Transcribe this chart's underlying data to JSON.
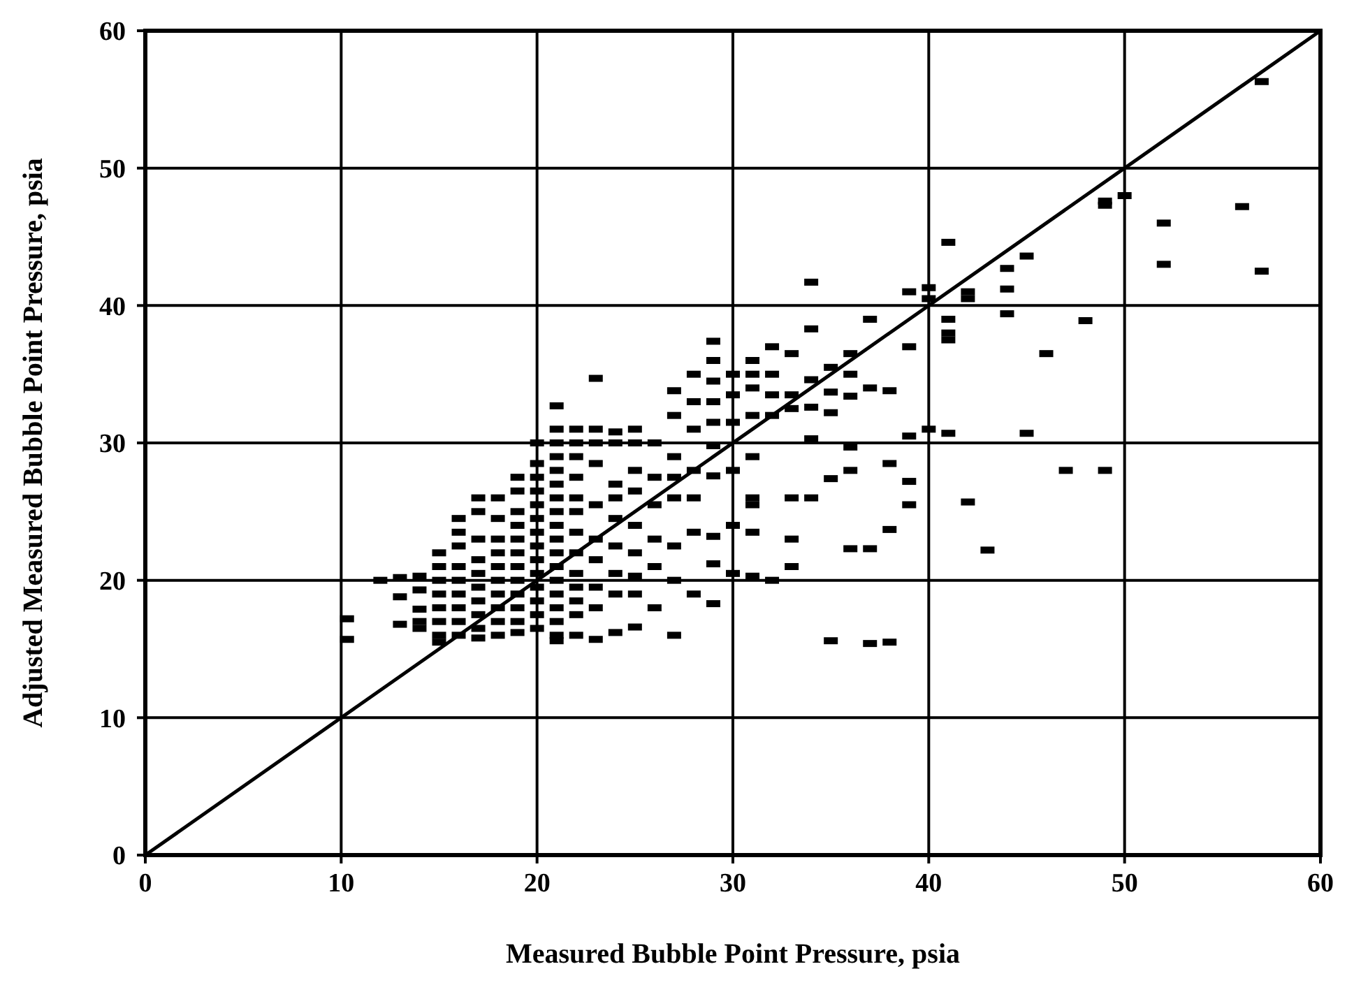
{
  "chart_data": {
    "type": "scatter",
    "xlabel": "Measured Bubble Point Pressure, psia",
    "ylabel": "Adjusted Measured Bubble Point Pressure, psia",
    "xlim": [
      0,
      60
    ],
    "ylim": [
      0,
      60
    ],
    "xticks": [
      0,
      10,
      20,
      30,
      40,
      50,
      60
    ],
    "yticks": [
      0,
      10,
      20,
      30,
      40,
      50,
      60
    ],
    "grid": true,
    "marker": "square",
    "series": [
      {
        "type": "line",
        "marker": "none",
        "color": "#000000",
        "x": [
          0,
          60
        ],
        "values": [
          0,
          60
        ]
      },
      {
        "color": "#000000",
        "x": [
          10.3,
          10.3,
          12,
          13,
          13,
          13,
          14,
          14,
          14,
          14,
          14,
          15,
          15,
          15,
          15,
          15,
          15,
          15,
          15,
          16,
          16,
          16,
          16,
          16,
          16,
          16,
          16,
          16,
          17,
          17,
          17,
          17,
          17,
          17,
          17,
          17,
          17,
          17,
          18,
          18,
          18,
          18,
          18,
          18,
          18,
          18,
          18,
          18,
          19,
          19,
          19,
          19,
          19,
          19,
          19,
          19,
          19,
          19,
          19,
          19,
          20,
          20,
          20,
          20,
          20,
          20,
          20,
          20,
          20,
          20,
          20,
          20,
          20,
          20,
          21,
          21,
          21,
          21,
          21,
          21,
          21,
          21,
          21,
          21,
          21,
          21,
          21,
          21,
          21,
          21,
          21,
          21,
          22,
          22,
          22,
          22,
          22,
          22,
          22,
          22,
          22,
          22,
          22,
          22,
          22,
          23,
          23,
          23,
          23,
          23,
          23,
          23,
          23,
          23,
          23,
          24,
          24,
          24,
          24,
          24,
          24,
          24,
          24,
          24,
          25,
          25,
          25,
          25,
          25,
          25,
          25,
          25,
          25,
          26,
          26,
          26,
          26,
          26,
          26,
          27,
          27,
          27,
          27,
          27,
          27,
          27,
          27,
          28,
          28,
          28,
          28,
          28,
          28,
          28,
          29,
          29,
          29,
          29,
          29,
          29,
          29,
          29,
          29,
          29,
          30,
          30,
          30,
          30,
          30,
          30,
          31,
          31,
          31,
          31,
          31,
          31,
          31,
          31,
          31,
          32,
          32,
          32,
          32,
          32,
          33,
          33,
          33,
          33,
          33,
          33,
          34,
          34,
          34,
          34,
          34,
          34,
          35,
          35,
          35,
          35,
          35,
          36,
          36,
          36,
          36,
          36,
          36,
          37,
          37,
          37,
          37,
          38,
          38,
          38,
          38,
          39,
          39,
          39,
          39,
          39,
          40,
          40,
          40,
          41,
          41,
          41,
          41,
          41,
          42,
          42,
          42,
          43,
          44,
          44,
          44,
          45,
          45,
          46,
          47,
          48,
          49,
          49,
          49,
          50,
          52,
          52,
          56,
          57,
          57
        ],
        "values": [
          17.2,
          15.7,
          20,
          20.2,
          18.8,
          16.8,
          20.3,
          19.3,
          17.9,
          17,
          16.5,
          22,
          21,
          20,
          19,
          18,
          17,
          16,
          15.5,
          24.5,
          23.5,
          22.5,
          21,
          20,
          19,
          18,
          17,
          16,
          26,
          25,
          23,
          21.5,
          20.5,
          19.5,
          18.5,
          17.5,
          16.5,
          15.8,
          26,
          24.5,
          23,
          22,
          21,
          20,
          19,
          18,
          17,
          16,
          27.5,
          26.5,
          25,
          24,
          23,
          22,
          21,
          20,
          19,
          18,
          17,
          16.2,
          30,
          28.5,
          27.5,
          26.5,
          25.5,
          24.5,
          23.5,
          22.5,
          21.5,
          20.5,
          19.5,
          18.5,
          17.5,
          16.5,
          32.7,
          31,
          30,
          29,
          28,
          27,
          26,
          25,
          24,
          23,
          22,
          21,
          20,
          19,
          18,
          17,
          16,
          15.6,
          31,
          30,
          29,
          27.5,
          26,
          25,
          23.5,
          22,
          20.5,
          19.5,
          18.5,
          17.5,
          16,
          34.7,
          31,
          30,
          28.5,
          25.5,
          23,
          21.5,
          19.5,
          18,
          15.7,
          30.8,
          30,
          27,
          26,
          24.5,
          22.5,
          20.5,
          19,
          16.2,
          31,
          30,
          28,
          26.5,
          24,
          22,
          20.3,
          19,
          16.6,
          30,
          27.5,
          25.5,
          23,
          21,
          18,
          33.8,
          32,
          29,
          27.5,
          26,
          22.5,
          20,
          16,
          35,
          33,
          31,
          28,
          26,
          23.5,
          19,
          37.4,
          36,
          34.5,
          33,
          31.5,
          29.8,
          27.6,
          23.2,
          21.2,
          18.3,
          35,
          33.5,
          31.5,
          28,
          24,
          20.5,
          36,
          35,
          34,
          32,
          29,
          26,
          25.5,
          23.5,
          20.3,
          37,
          35,
          33.5,
          32,
          20,
          36.5,
          33.5,
          32.5,
          26,
          23,
          21,
          41.7,
          38.3,
          34.6,
          32.6,
          30.3,
          26,
          35.5,
          33.7,
          32.2,
          27.4,
          15.6,
          36.5,
          35,
          33.4,
          29.7,
          28,
          22.3,
          39,
          34,
          22.3,
          15.4,
          33.8,
          28.5,
          23.7,
          15.5,
          41,
          37,
          30.5,
          27.2,
          25.5,
          41.3,
          40.5,
          31,
          44.6,
          39,
          38,
          37.5,
          30.7,
          41,
          40.5,
          25.7,
          22.2,
          42.7,
          41.2,
          39.4,
          43.6,
          30.7,
          36.5,
          28,
          38.9,
          47.6,
          47.3,
          28,
          48,
          46,
          43,
          47.2,
          56.3,
          42.5
        ]
      }
    ]
  }
}
